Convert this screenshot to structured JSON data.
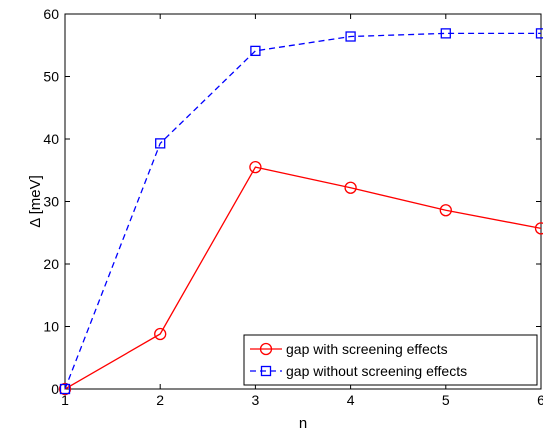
{
  "chart_data": {
    "type": "line",
    "xlabel": "n",
    "ylabel": "Δ [meV]",
    "xlim": [
      1,
      6
    ],
    "ylim": [
      0,
      60
    ],
    "xticks": [
      1,
      2,
      3,
      4,
      5,
      6
    ],
    "yticks": [
      0,
      10,
      20,
      30,
      40,
      50,
      60
    ],
    "grid": false,
    "legend_position": "bottom-right",
    "series": [
      {
        "name": "gap with screening effects",
        "color": "#ff0000",
        "line_style": "solid",
        "marker": "circle",
        "x": [
          1,
          2,
          3,
          4,
          5,
          6
        ],
        "y": [
          0,
          8.8,
          35.5,
          32.2,
          28.6,
          25.7
        ]
      },
      {
        "name": "gap without screening effects",
        "color": "#0000ff",
        "line_style": "dashed",
        "marker": "square",
        "x": [
          1,
          2,
          3,
          4,
          5,
          6
        ],
        "y": [
          0,
          39.3,
          54.1,
          56.4,
          56.9,
          56.9
        ]
      }
    ]
  }
}
